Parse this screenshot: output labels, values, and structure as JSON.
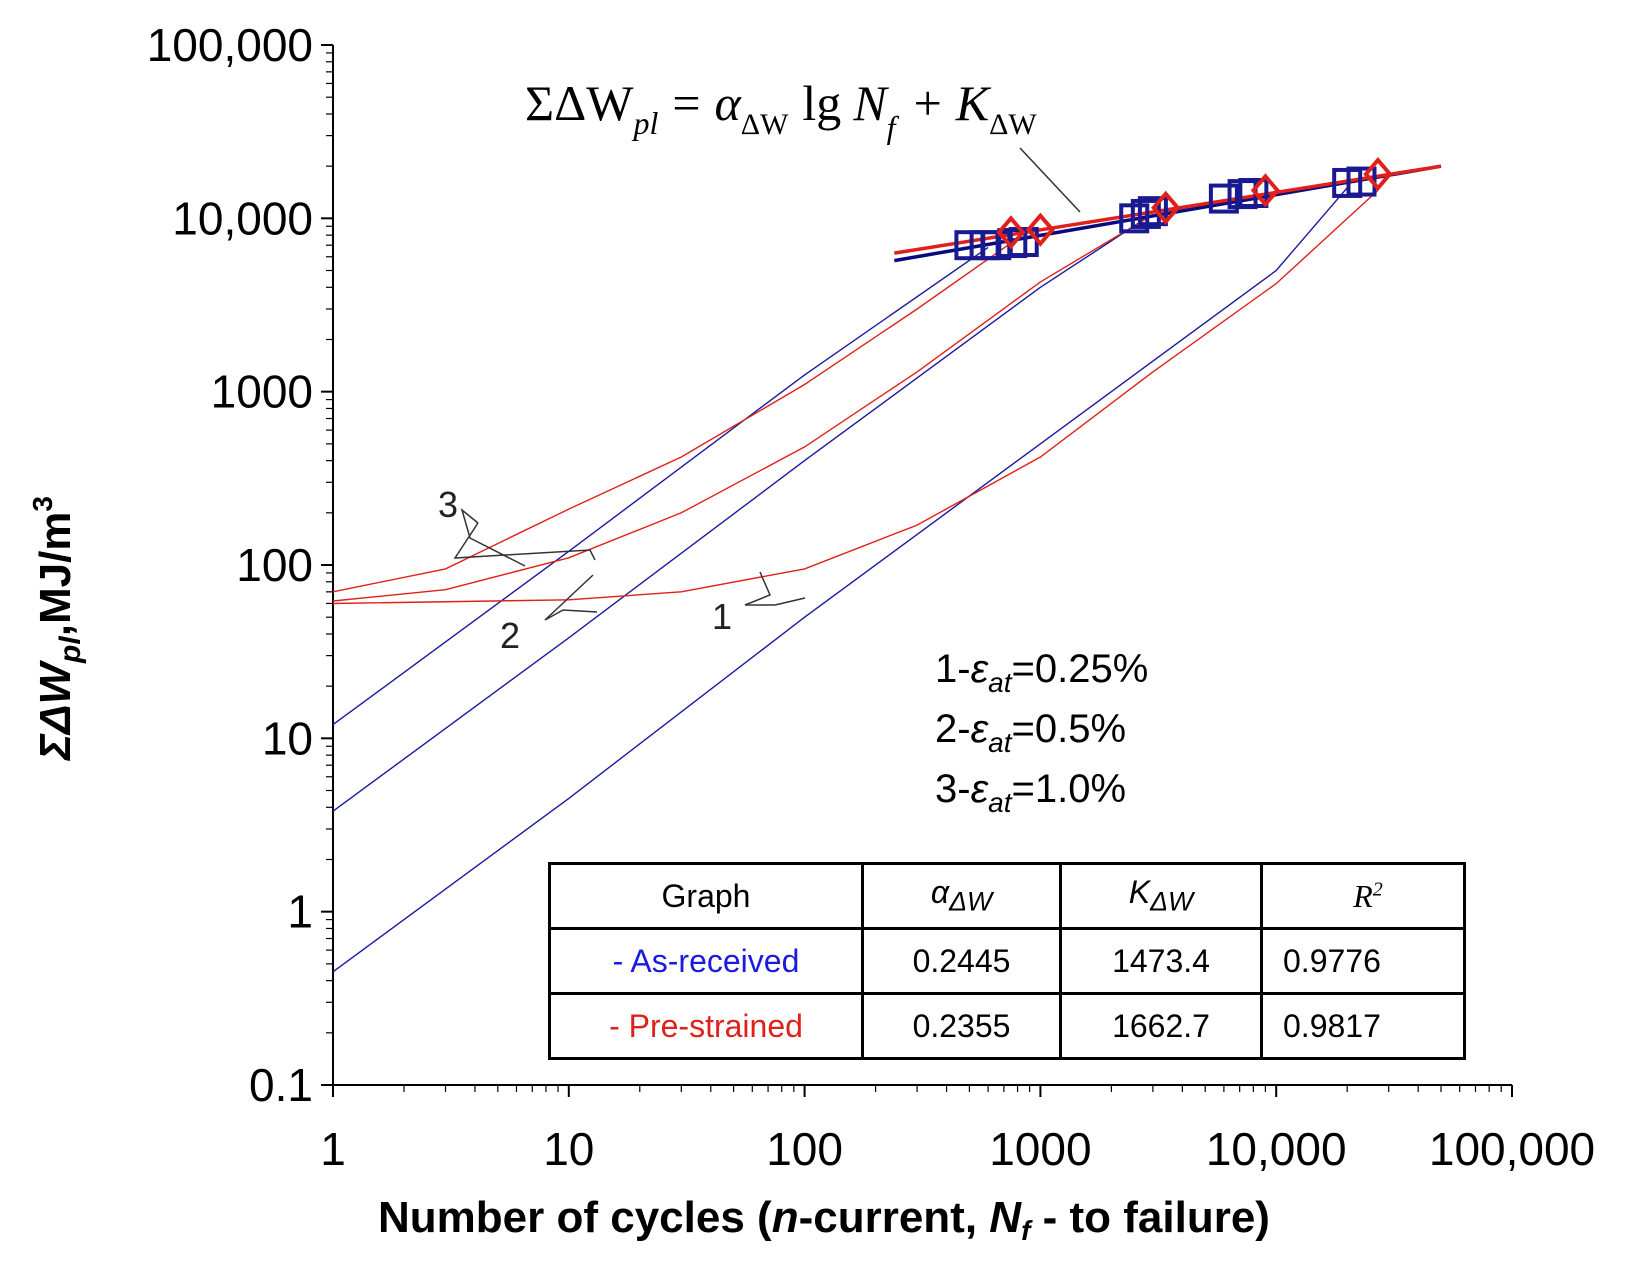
{
  "chart_data": {
    "type": "line",
    "title_formula": {
      "lhs": "ΣΔW",
      "lhs_sub": "pl",
      "eq": "=",
      "alpha": "α",
      "alpha_sub": "ΔW",
      "lg": "lg",
      "N": "N",
      "N_sub": "f",
      "plus": "+",
      "K": "K",
      "K_sub": "ΔW"
    },
    "x_axis": {
      "scale": "log",
      "range": [
        1,
        100000
      ],
      "tick_labels": [
        "1",
        "10",
        "100",
        "1000",
        "10,000",
        "100,000"
      ],
      "title_parts": [
        "Number of cycles (",
        "n",
        "-current, ",
        "N",
        "f",
        " - to failure)"
      ]
    },
    "y_axis": {
      "scale": "log",
      "range": [
        0.1,
        100000
      ],
      "tick_labels": [
        "0.1",
        "1",
        "10",
        "100",
        "1000",
        "10,000",
        "100,000"
      ],
      "title_parts": [
        "ΣΔW",
        "pl",
        ",MJ/m",
        "3"
      ]
    },
    "series": [
      {
        "name": "As-received, ε_at=1.0%",
        "group": "as-received",
        "curve": "3",
        "color": "#1a1aa0",
        "points": [
          [
            1,
            12
          ],
          [
            10,
            120
          ],
          [
            100,
            1250
          ],
          [
            600,
            6800
          ]
        ]
      },
      {
        "name": "As-received, ε_at=0.5%",
        "group": "as-received",
        "curve": "2",
        "color": "#1a1aa0",
        "points": [
          [
            1,
            3.8
          ],
          [
            10,
            38
          ],
          [
            100,
            400
          ],
          [
            1000,
            4000
          ],
          [
            2800,
            10000
          ]
        ]
      },
      {
        "name": "As-received, ε_at=0.25%",
        "group": "as-received",
        "curve": "1",
        "color": "#1a1aa0",
        "points": [
          [
            1,
            0.45
          ],
          [
            10,
            4.5
          ],
          [
            100,
            50
          ],
          [
            1000,
            500
          ],
          [
            10000,
            5000
          ],
          [
            20000,
            15000
          ]
        ]
      },
      {
        "name": "Pre-strained, ε_at=1.0%",
        "group": "pre-strained",
        "curve": "3",
        "color": "#e0201a",
        "points": [
          [
            1,
            70
          ],
          [
            3,
            95
          ],
          [
            10,
            210
          ],
          [
            30,
            420
          ],
          [
            100,
            1100
          ],
          [
            300,
            3000
          ],
          [
            750,
            7200
          ]
        ]
      },
      {
        "name": "Pre-strained, ε_at=0.5%",
        "group": "pre-strained",
        "curve": "2",
        "color": "#e0201a",
        "points": [
          [
            1,
            62
          ],
          [
            3,
            72
          ],
          [
            10,
            110
          ],
          [
            30,
            200
          ],
          [
            100,
            480
          ],
          [
            300,
            1300
          ],
          [
            1000,
            4300
          ],
          [
            3000,
            10500
          ]
        ]
      },
      {
        "name": "Pre-strained, ε_at=0.25%",
        "group": "pre-strained",
        "curve": "1",
        "color": "#e0201a",
        "points": [
          [
            1,
            60
          ],
          [
            10,
            63
          ],
          [
            30,
            70
          ],
          [
            100,
            95
          ],
          [
            300,
            170
          ],
          [
            1000,
            420
          ],
          [
            3000,
            1300
          ],
          [
            10000,
            4200
          ],
          [
            27000,
            14500
          ]
        ]
      },
      {
        "name": "As-received fit",
        "group": "as-received",
        "color": "#0a0a80",
        "points": [
          [
            240,
            5700
          ],
          [
            50000,
            20000
          ]
        ]
      },
      {
        "name": "Pre-strained fit",
        "group": "pre-strained",
        "color": "#e0201a",
        "points": [
          [
            240,
            6300
          ],
          [
            50000,
            20000
          ]
        ]
      }
    ],
    "markers": {
      "as_received": {
        "color": "#1a1a90",
        "shape": "square",
        "points": [
          [
            500,
            7000
          ],
          [
            580,
            7000
          ],
          [
            650,
            7000
          ],
          [
            760,
            7200
          ],
          [
            850,
            7300
          ],
          [
            2500,
            10000
          ],
          [
            2800,
            10600
          ],
          [
            3000,
            11000
          ],
          [
            6000,
            13000
          ],
          [
            7200,
            13800
          ],
          [
            8000,
            14000
          ],
          [
            20000,
            16000
          ],
          [
            23000,
            16300
          ]
        ]
      },
      "pre_strained": {
        "color": "#e0201a",
        "shape": "diamond",
        "points": [
          [
            750,
            8300
          ],
          [
            1000,
            8600
          ],
          [
            3400,
            11500
          ],
          [
            9000,
            14500
          ],
          [
            27000,
            18000
          ]
        ]
      }
    },
    "curve_labels": [
      "1",
      "2",
      "3"
    ],
    "legend": {
      "items": [
        {
          "prefix": "1-",
          "symbol": "ε",
          "sub": "at",
          "value": "=0.25%"
        },
        {
          "prefix": "2-",
          "symbol": "ε",
          "sub": "at",
          "value": "=0.5%"
        },
        {
          "prefix": "3-",
          "symbol": "ε",
          "sub": "at",
          "value": "=1.0%"
        }
      ]
    },
    "fit_table": {
      "headers": {
        "graph": "Graph",
        "alpha": "α",
        "alpha_sub": "ΔW",
        "k": "K",
        "k_sub": "ΔW",
        "r": "R",
        "r_sup": "2"
      },
      "rows": [
        {
          "graph": "- As-received",
          "color": "#1a1ae0",
          "alpha": "0.2445",
          "k": "1473.4",
          "r2": "0.9776"
        },
        {
          "graph": "- Pre-strained",
          "color": "#e0201a",
          "alpha": "0.2355",
          "k": "1662.7",
          "r2": "0.9817"
        }
      ]
    }
  }
}
